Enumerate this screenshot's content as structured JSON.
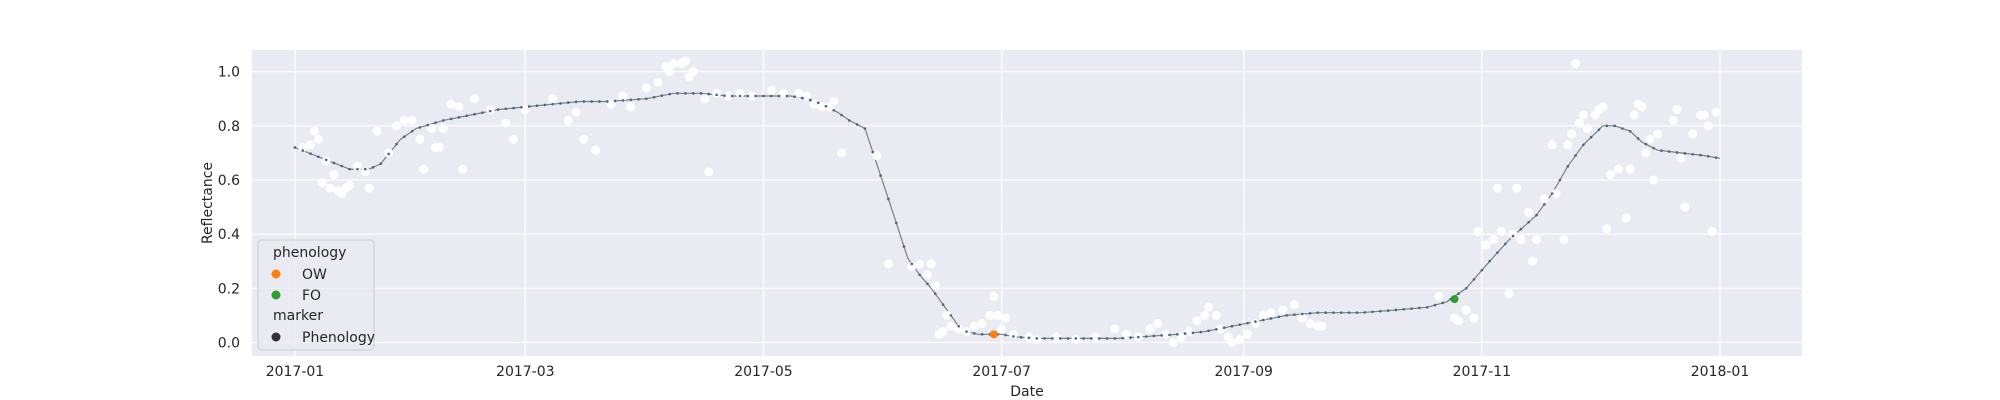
{
  "chart_data": {
    "type": "scatter",
    "title": "",
    "xlabel": "Date",
    "ylabel": "Reflectance",
    "xlim": [
      "2016-12-21",
      "2018-01-22"
    ],
    "ylim": [
      -0.05,
      1.08
    ],
    "x_ticks": [
      "2017-01-01",
      "2017-03-01",
      "2017-05-01",
      "2017-07-01",
      "2017-09-01",
      "2017-11-01",
      "2018-01-01"
    ],
    "x_tick_labels": [
      "2017-01",
      "2017-03",
      "2017-05",
      "2017-07",
      "2017-09",
      "2017-11",
      "2018-01"
    ],
    "y_ticks": [
      0.0,
      0.2,
      0.4,
      0.6,
      0.8,
      1.0
    ],
    "y_tick_labels": [
      "0.0",
      "0.2",
      "0.4",
      "0.6",
      "0.8",
      "1.0"
    ],
    "grid": true,
    "legend_position": "lower-left",
    "legend": {
      "hue_title": "phenology",
      "entries": [
        {
          "label": "OW",
          "color": "#ff7f0e"
        },
        {
          "label": "FO",
          "color": "#2ca02c"
        }
      ],
      "marker_title": "marker",
      "marker_entries": [
        {
          "label": "Phenology",
          "color": "#333333"
        }
      ]
    },
    "colors": {
      "background": "#eaeaf2",
      "grid": "#ffffff",
      "observations": "#ffffff",
      "fit_line": "#7f7f7f",
      "fit_points": "#3e6a85"
    },
    "series": [
      {
        "name": "",
        "role": "observations",
        "points": [
          [
            "2017-01-03",
            0.72
          ],
          [
            "2017-01-05",
            0.73
          ],
          [
            "2017-01-06",
            0.78
          ],
          [
            "2017-01-07",
            0.75
          ],
          [
            "2017-01-08",
            0.59
          ],
          [
            "2017-01-09",
            0.67
          ],
          [
            "2017-01-10",
            0.57
          ],
          [
            "2017-01-11",
            0.62
          ],
          [
            "2017-01-12",
            0.56
          ],
          [
            "2017-01-13",
            0.55
          ],
          [
            "2017-01-14",
            0.57
          ],
          [
            "2017-01-15",
            0.58
          ],
          [
            "2017-01-17",
            0.65
          ],
          [
            "2017-01-19",
            0.63
          ],
          [
            "2017-01-20",
            0.57
          ],
          [
            "2017-01-22",
            0.78
          ],
          [
            "2017-01-25",
            0.7
          ],
          [
            "2017-01-27",
            0.8
          ],
          [
            "2017-01-29",
            0.82
          ],
          [
            "2017-01-31",
            0.82
          ],
          [
            "2017-02-02",
            0.75
          ],
          [
            "2017-02-03",
            0.64
          ],
          [
            "2017-02-05",
            0.79
          ],
          [
            "2017-02-06",
            0.72
          ],
          [
            "2017-02-07",
            0.72
          ],
          [
            "2017-02-08",
            0.79
          ],
          [
            "2017-02-10",
            0.88
          ],
          [
            "2017-02-12",
            0.87
          ],
          [
            "2017-02-13",
            0.64
          ],
          [
            "2017-02-16",
            0.9
          ],
          [
            "2017-02-20",
            0.86
          ],
          [
            "2017-02-24",
            0.81
          ],
          [
            "2017-02-26",
            0.75
          ],
          [
            "2017-03-01",
            0.86
          ],
          [
            "2017-03-08",
            0.9
          ],
          [
            "2017-03-12",
            0.82
          ],
          [
            "2017-03-14",
            0.85
          ],
          [
            "2017-03-16",
            0.75
          ],
          [
            "2017-03-19",
            0.71
          ],
          [
            "2017-03-23",
            0.88
          ],
          [
            "2017-03-26",
            0.91
          ],
          [
            "2017-03-28",
            0.87
          ],
          [
            "2017-04-01",
            0.94
          ],
          [
            "2017-04-04",
            0.96
          ],
          [
            "2017-04-06",
            1.02
          ],
          [
            "2017-04-07",
            1.0
          ],
          [
            "2017-04-08",
            1.03
          ],
          [
            "2017-04-10",
            1.03
          ],
          [
            "2017-04-11",
            1.04
          ],
          [
            "2017-04-12",
            0.98
          ],
          [
            "2017-04-13",
            1.0
          ],
          [
            "2017-04-16",
            0.9
          ],
          [
            "2017-04-17",
            0.63
          ],
          [
            "2017-04-19",
            0.92
          ],
          [
            "2017-04-22",
            0.91
          ],
          [
            "2017-04-25",
            0.92
          ],
          [
            "2017-04-28",
            0.91
          ],
          [
            "2017-05-03",
            0.93
          ],
          [
            "2017-05-06",
            0.92
          ],
          [
            "2017-05-10",
            0.92
          ],
          [
            "2017-05-12",
            0.91
          ],
          [
            "2017-05-14",
            0.88
          ],
          [
            "2017-05-16",
            0.87
          ],
          [
            "2017-05-18",
            0.87
          ],
          [
            "2017-05-19",
            0.89
          ],
          [
            "2017-05-21",
            0.7
          ],
          [
            "2017-05-30",
            0.69
          ],
          [
            "2017-06-02",
            0.29
          ],
          [
            "2017-06-08",
            0.28
          ],
          [
            "2017-06-10",
            0.29
          ],
          [
            "2017-06-12",
            0.25
          ],
          [
            "2017-06-13",
            0.29
          ],
          [
            "2017-06-14",
            0.21
          ],
          [
            "2017-06-15",
            0.03
          ],
          [
            "2017-06-16",
            0.04
          ],
          [
            "2017-06-17",
            0.1
          ],
          [
            "2017-06-18",
            0.06
          ],
          [
            "2017-06-20",
            0.05
          ],
          [
            "2017-06-22",
            0.04
          ],
          [
            "2017-06-24",
            0.06
          ],
          [
            "2017-06-26",
            0.07
          ],
          [
            "2017-06-28",
            0.1
          ],
          [
            "2017-06-29",
            0.17
          ],
          [
            "2017-06-30",
            0.1
          ],
          [
            "2017-07-01",
            0.05
          ],
          [
            "2017-07-02",
            0.09
          ],
          [
            "2017-07-04",
            0.03
          ],
          [
            "2017-07-08",
            0.02
          ],
          [
            "2017-07-10",
            0.01
          ],
          [
            "2017-07-15",
            0.02
          ],
          [
            "2017-07-20",
            0.01
          ],
          [
            "2017-07-25",
            0.02
          ],
          [
            "2017-07-30",
            0.05
          ],
          [
            "2017-08-02",
            0.03
          ],
          [
            "2017-08-05",
            0.02
          ],
          [
            "2017-08-08",
            0.05
          ],
          [
            "2017-08-10",
            0.07
          ],
          [
            "2017-08-12",
            0.03
          ],
          [
            "2017-08-14",
            0.0
          ],
          [
            "2017-08-16",
            0.02
          ],
          [
            "2017-08-18",
            0.04
          ],
          [
            "2017-08-20",
            0.08
          ],
          [
            "2017-08-22",
            0.1
          ],
          [
            "2017-08-23",
            0.13
          ],
          [
            "2017-08-25",
            0.1
          ],
          [
            "2017-08-26",
            0.05
          ],
          [
            "2017-08-28",
            0.02
          ],
          [
            "2017-08-29",
            0.0
          ],
          [
            "2017-08-31",
            0.01
          ],
          [
            "2017-09-02",
            0.03
          ],
          [
            "2017-09-04",
            0.07
          ],
          [
            "2017-09-06",
            0.1
          ],
          [
            "2017-09-08",
            0.11
          ],
          [
            "2017-09-11",
            0.12
          ],
          [
            "2017-09-14",
            0.14
          ],
          [
            "2017-09-16",
            0.09
          ],
          [
            "2017-09-18",
            0.07
          ],
          [
            "2017-09-20",
            0.06
          ],
          [
            "2017-09-21",
            0.06
          ],
          [
            "2017-10-21",
            0.17
          ],
          [
            "2017-10-25",
            0.09
          ],
          [
            "2017-10-26",
            0.08
          ],
          [
            "2017-10-28",
            0.12
          ],
          [
            "2017-10-30",
            0.09
          ],
          [
            "2017-10-31",
            0.41
          ],
          [
            "2017-11-02",
            0.36
          ],
          [
            "2017-11-04",
            0.38
          ],
          [
            "2017-11-05",
            0.57
          ],
          [
            "2017-11-06",
            0.41
          ],
          [
            "2017-11-08",
            0.18
          ],
          [
            "2017-11-09",
            0.4
          ],
          [
            "2017-11-10",
            0.57
          ],
          [
            "2017-11-11",
            0.38
          ],
          [
            "2017-11-13",
            0.48
          ],
          [
            "2017-11-14",
            0.3
          ],
          [
            "2017-11-15",
            0.38
          ],
          [
            "2017-11-17",
            0.53
          ],
          [
            "2017-11-19",
            0.73
          ],
          [
            "2017-11-20",
            0.55
          ],
          [
            "2017-11-22",
            0.38
          ],
          [
            "2017-11-23",
            0.73
          ],
          [
            "2017-11-24",
            0.77
          ],
          [
            "2017-11-25",
            1.03
          ],
          [
            "2017-11-26",
            0.81
          ],
          [
            "2017-11-27",
            0.84
          ],
          [
            "2017-11-28",
            0.79
          ],
          [
            "2017-11-30",
            0.84
          ],
          [
            "2017-12-01",
            0.86
          ],
          [
            "2017-12-02",
            0.87
          ],
          [
            "2017-12-03",
            0.42
          ],
          [
            "2017-12-04",
            0.62
          ],
          [
            "2017-12-06",
            0.64
          ],
          [
            "2017-12-08",
            0.46
          ],
          [
            "2017-12-09",
            0.64
          ],
          [
            "2017-12-10",
            0.84
          ],
          [
            "2017-12-11",
            0.88
          ],
          [
            "2017-12-12",
            0.87
          ],
          [
            "2017-12-13",
            0.7
          ],
          [
            "2017-12-14",
            0.75
          ],
          [
            "2017-12-15",
            0.6
          ],
          [
            "2017-12-16",
            0.77
          ],
          [
            "2017-12-20",
            0.82
          ],
          [
            "2017-12-21",
            0.86
          ],
          [
            "2017-12-22",
            0.68
          ],
          [
            "2017-12-23",
            0.5
          ],
          [
            "2017-12-25",
            0.77
          ],
          [
            "2017-12-27",
            0.84
          ],
          [
            "2017-12-28",
            0.84
          ],
          [
            "2017-12-29",
            0.8
          ],
          [
            "2017-12-30",
            0.41
          ],
          [
            "2017-12-31",
            0.85
          ]
        ]
      },
      {
        "name": "",
        "role": "fitted",
        "points": [
          [
            "2017-01-01",
            0.72
          ],
          [
            "2017-01-08",
            0.68
          ],
          [
            "2017-01-15",
            0.64
          ],
          [
            "2017-01-20",
            0.64
          ],
          [
            "2017-01-23",
            0.66
          ],
          [
            "2017-01-28",
            0.75
          ],
          [
            "2017-02-01",
            0.79
          ],
          [
            "2017-02-08",
            0.82
          ],
          [
            "2017-02-15",
            0.84
          ],
          [
            "2017-02-22",
            0.86
          ],
          [
            "2017-03-01",
            0.87
          ],
          [
            "2017-03-08",
            0.88
          ],
          [
            "2017-03-15",
            0.89
          ],
          [
            "2017-03-22",
            0.89
          ],
          [
            "2017-04-01",
            0.9
          ],
          [
            "2017-04-08",
            0.92
          ],
          [
            "2017-04-15",
            0.92
          ],
          [
            "2017-04-22",
            0.91
          ],
          [
            "2017-05-01",
            0.91
          ],
          [
            "2017-05-08",
            0.91
          ],
          [
            "2017-05-12",
            0.9
          ],
          [
            "2017-05-16",
            0.88
          ],
          [
            "2017-05-20",
            0.85
          ],
          [
            "2017-05-23",
            0.82
          ],
          [
            "2017-05-27",
            0.79
          ],
          [
            "2017-06-02",
            0.53
          ],
          [
            "2017-06-07",
            0.31
          ],
          [
            "2017-06-10",
            0.25
          ],
          [
            "2017-06-13",
            0.2
          ],
          [
            "2017-06-17",
            0.12
          ],
          [
            "2017-06-20",
            0.06
          ],
          [
            "2017-06-22",
            0.04
          ],
          [
            "2017-06-25",
            0.03
          ],
          [
            "2017-07-01",
            0.03
          ],
          [
            "2017-07-05",
            0.02
          ],
          [
            "2017-07-10",
            0.015
          ],
          [
            "2017-07-20",
            0.015
          ],
          [
            "2017-07-31",
            0.015
          ],
          [
            "2017-08-05",
            0.02
          ],
          [
            "2017-08-10",
            0.025
          ],
          [
            "2017-08-15",
            0.03
          ],
          [
            "2017-08-22",
            0.04
          ],
          [
            "2017-08-29",
            0.06
          ],
          [
            "2017-09-05",
            0.08
          ],
          [
            "2017-09-12",
            0.1
          ],
          [
            "2017-09-20",
            0.11
          ],
          [
            "2017-10-01",
            0.11
          ],
          [
            "2017-10-10",
            0.12
          ],
          [
            "2017-10-18",
            0.13
          ],
          [
            "2017-10-23",
            0.15
          ],
          [
            "2017-10-28",
            0.2
          ],
          [
            "2017-11-03",
            0.3
          ],
          [
            "2017-11-08",
            0.38
          ],
          [
            "2017-11-15",
            0.47
          ],
          [
            "2017-11-19",
            0.55
          ],
          [
            "2017-11-23",
            0.65
          ],
          [
            "2017-11-27",
            0.73
          ],
          [
            "2017-12-02",
            0.8
          ],
          [
            "2017-12-05",
            0.8
          ],
          [
            "2017-12-09",
            0.78
          ],
          [
            "2017-12-12",
            0.74
          ],
          [
            "2017-12-16",
            0.71
          ],
          [
            "2017-12-22",
            0.7
          ],
          [
            "2017-12-28",
            0.69
          ],
          [
            "2018-01-01",
            0.68
          ]
        ]
      },
      {
        "name": "OW",
        "role": "phenology",
        "color": "#ff7f0e",
        "points": [
          [
            "2017-06-29",
            0.03
          ]
        ]
      },
      {
        "name": "FO",
        "role": "phenology",
        "color": "#2ca02c",
        "points": [
          [
            "2017-10-25",
            0.16
          ]
        ]
      }
    ]
  }
}
